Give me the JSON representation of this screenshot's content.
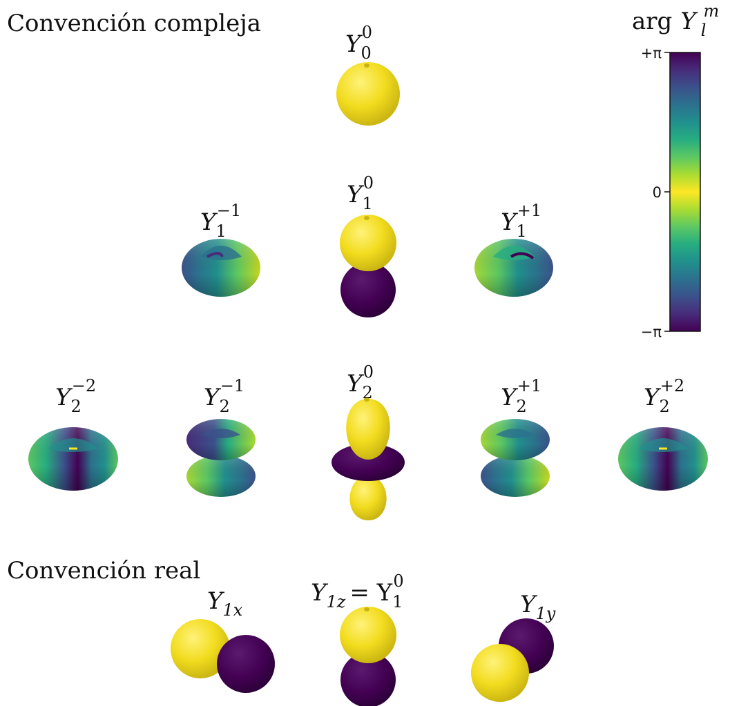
{
  "sections": {
    "complex_title": "Convención compleja",
    "real_title": "Convención real"
  },
  "colorbar": {
    "title_fn": "arg",
    "title_sym": "Y",
    "title_sub": "l",
    "title_sup": "m",
    "tick_top": "+π",
    "tick_mid": "0",
    "tick_bottom": "−π",
    "colormap": "viridis",
    "colors": [
      "#440154",
      "#472c7a",
      "#3b518b",
      "#2c718e",
      "#21908d",
      "#27ad81",
      "#5cc863",
      "#aadc32",
      "#fde725",
      "#aadc32",
      "#5cc863",
      "#27ad81",
      "#21908d",
      "#2c718e",
      "#3b518b",
      "#472c7a",
      "#440154"
    ]
  },
  "orbitals": [
    {
      "id": "Y00",
      "sym": "Y",
      "sub": "0",
      "sup": "0",
      "rest": ""
    },
    {
      "id": "Y1m1",
      "sym": "Y",
      "sub": "1",
      "sup": "−1",
      "rest": ""
    },
    {
      "id": "Y10",
      "sym": "Y",
      "sub": "1",
      "sup": "0",
      "rest": ""
    },
    {
      "id": "Y1p1",
      "sym": "Y",
      "sub": "1",
      "sup": "+1",
      "rest": ""
    },
    {
      "id": "Y2m2",
      "sym": "Y",
      "sub": "2",
      "sup": "−2",
      "rest": ""
    },
    {
      "id": "Y2m1",
      "sym": "Y",
      "sub": "2",
      "sup": "−1",
      "rest": ""
    },
    {
      "id": "Y20",
      "sym": "Y",
      "sub": "2",
      "sup": "0",
      "rest": ""
    },
    {
      "id": "Y2p1",
      "sym": "Y",
      "sub": "2",
      "sup": "+1",
      "rest": ""
    },
    {
      "id": "Y2p2",
      "sym": "Y",
      "sub": "2",
      "sup": "+2",
      "rest": ""
    },
    {
      "id": "Y1x",
      "sym": "Y",
      "sub": "1x",
      "sup": "",
      "rest": ""
    },
    {
      "id": "Y1z",
      "sym": "Y",
      "sub": "1z",
      "sup": "",
      "rest": "= Y",
      "rest_sub": "1",
      "rest_sup": "0"
    },
    {
      "id": "Y1y",
      "sym": "Y",
      "sub": "1y",
      "sup": "",
      "rest": ""
    }
  ],
  "phase_colors": {
    "yellow": "#fde725",
    "purple": "#440154",
    "teal": "#21908d",
    "green": "#5cc863"
  }
}
